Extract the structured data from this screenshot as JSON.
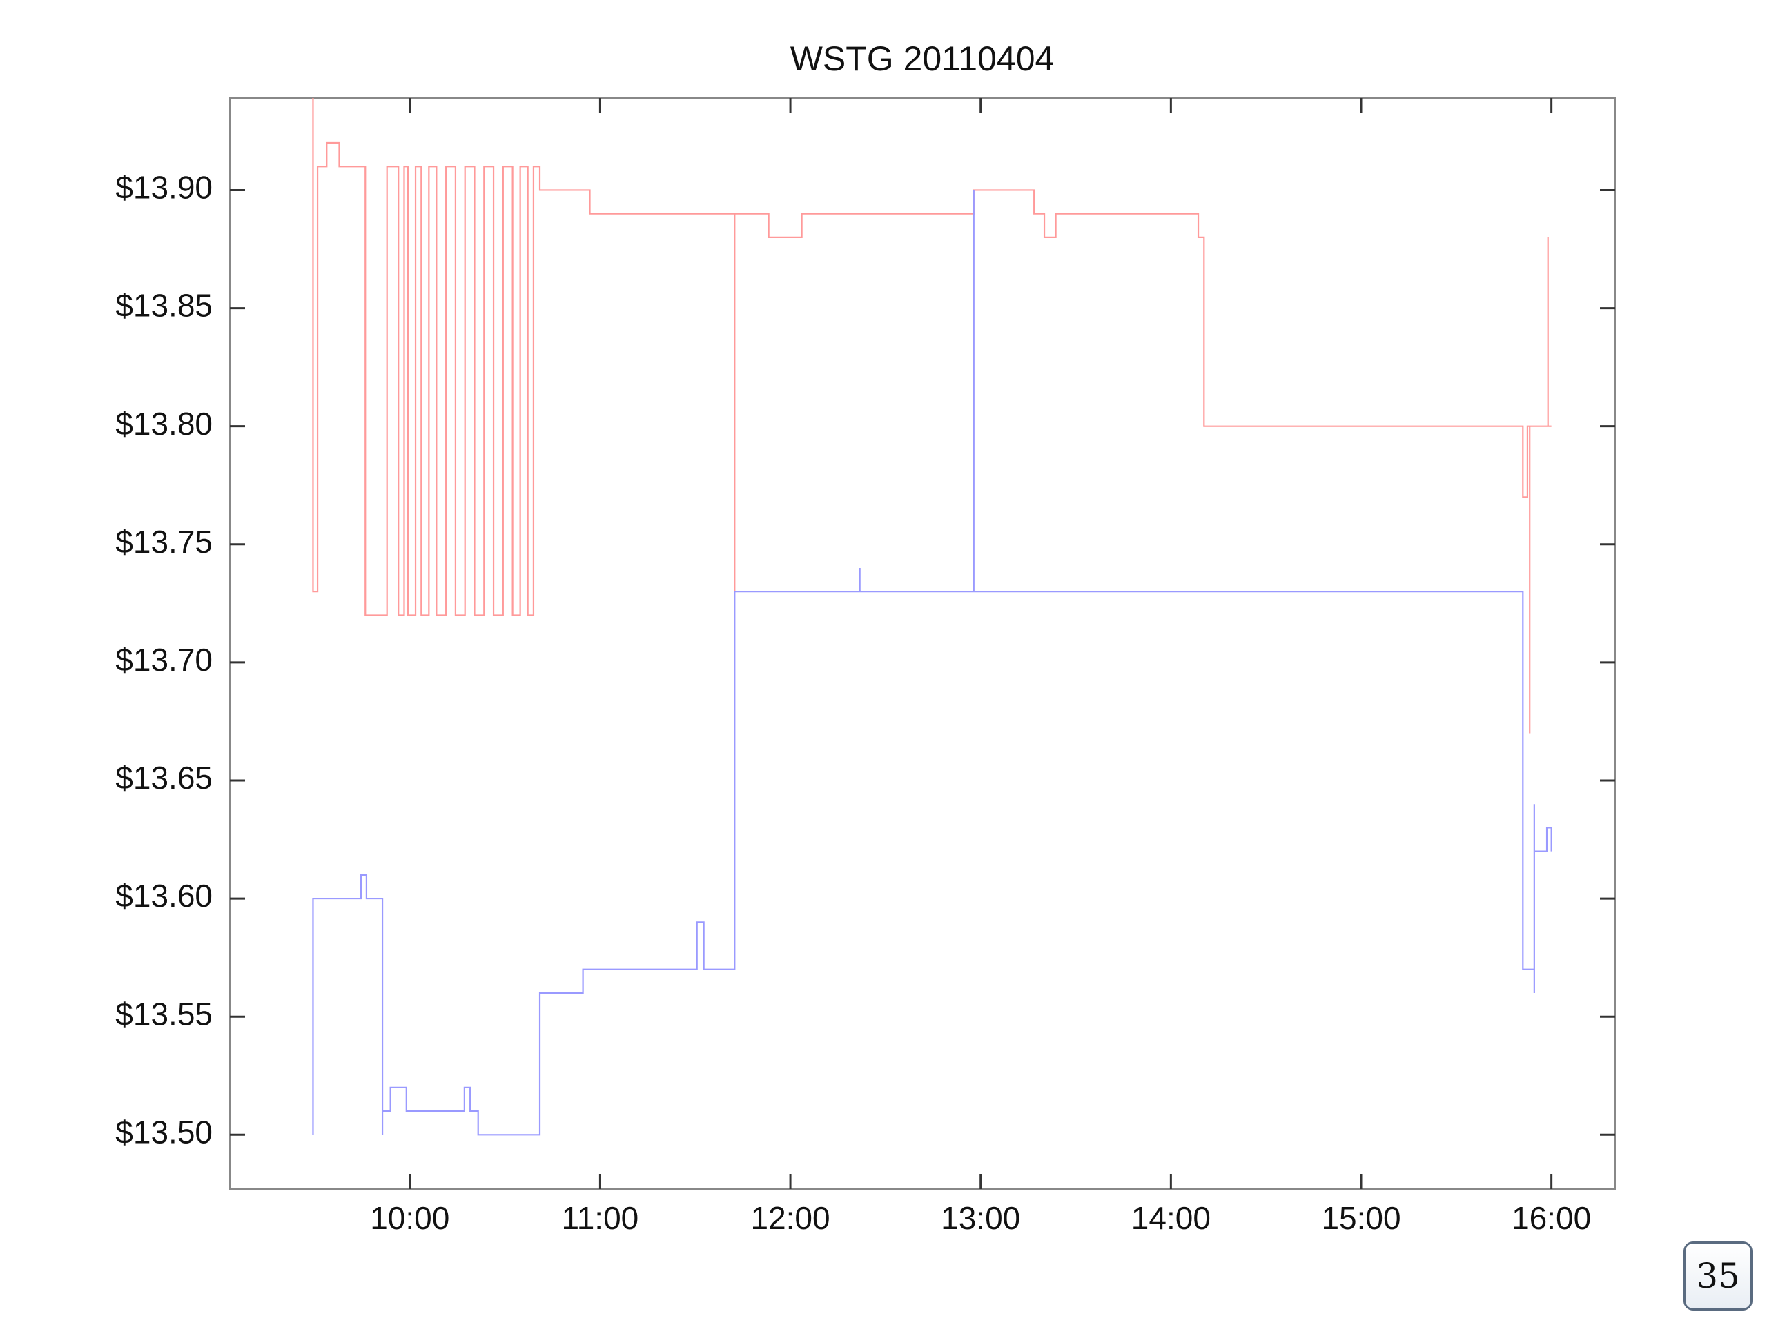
{
  "chart_data": {
    "type": "line",
    "title": "WSTG 20110404",
    "xlim": [
      9.054,
      16.335
    ],
    "ylim": [
      13.477,
      13.939
    ],
    "xticks": [
      {
        "value": 10,
        "label": "10:00"
      },
      {
        "value": 11,
        "label": "11:00"
      },
      {
        "value": 12,
        "label": "12:00"
      },
      {
        "value": 13,
        "label": "13:00"
      },
      {
        "value": 14,
        "label": "14:00"
      },
      {
        "value": 15,
        "label": "15:00"
      },
      {
        "value": 16,
        "label": "16:00"
      }
    ],
    "yticks": [
      {
        "value": 13.5,
        "label": "$13.50"
      },
      {
        "value": 13.55,
        "label": "$13.55"
      },
      {
        "value": 13.6,
        "label": "$13.60"
      },
      {
        "value": 13.65,
        "label": "$13.65"
      },
      {
        "value": 13.7,
        "label": "$13.70"
      },
      {
        "value": 13.75,
        "label": "$13.75"
      },
      {
        "value": 13.8,
        "label": "$13.80"
      },
      {
        "value": 13.85,
        "label": "$13.85"
      },
      {
        "value": 13.9,
        "label": "$13.90"
      }
    ],
    "grid": false,
    "series": [
      {
        "color": "#ff9a9a",
        "x": [
          9.491,
          9.491,
          9.515,
          9.515,
          9.563,
          9.563,
          9.629,
          9.629,
          9.766,
          9.766,
          9.88,
          9.88,
          9.94,
          9.94,
          9.97,
          9.97,
          9.99,
          9.99,
          10.03,
          10.03,
          10.06,
          10.06,
          10.1,
          10.1,
          10.14,
          10.14,
          10.19,
          10.19,
          10.24,
          10.24,
          10.29,
          10.29,
          10.34,
          10.34,
          10.39,
          10.39,
          10.44,
          10.44,
          10.49,
          10.49,
          10.54,
          10.54,
          10.58,
          10.58,
          10.62,
          10.62,
          10.65,
          10.65,
          10.683,
          10.683,
          10.946,
          10.946,
          11.707,
          11.707,
          11.707,
          11.886,
          11.886,
          12.06,
          12.06,
          12.964,
          12.964,
          13.281,
          13.281,
          13.335,
          13.335,
          13.395,
          13.395,
          14.144,
          14.144,
          14.174,
          14.174,
          15.85,
          15.85,
          15.874,
          15.874,
          15.886,
          15.886,
          15.886,
          15.982,
          15.982,
          15.982,
          16.0
        ],
        "values": [
          13.939,
          13.73,
          13.73,
          13.91,
          13.91,
          13.92,
          13.92,
          13.91,
          13.91,
          13.72,
          13.72,
          13.91,
          13.91,
          13.72,
          13.72,
          13.91,
          13.91,
          13.72,
          13.72,
          13.91,
          13.91,
          13.72,
          13.72,
          13.91,
          13.91,
          13.72,
          13.72,
          13.91,
          13.91,
          13.72,
          13.72,
          13.91,
          13.91,
          13.72,
          13.72,
          13.91,
          13.91,
          13.72,
          13.72,
          13.91,
          13.91,
          13.72,
          13.72,
          13.91,
          13.91,
          13.72,
          13.72,
          13.91,
          13.91,
          13.9,
          13.9,
          13.89,
          13.89,
          13.73,
          13.89,
          13.89,
          13.88,
          13.88,
          13.89,
          13.89,
          13.9,
          13.9,
          13.89,
          13.89,
          13.88,
          13.88,
          13.89,
          13.89,
          13.88,
          13.88,
          13.8,
          13.8,
          13.77,
          13.77,
          13.8,
          13.8,
          13.67,
          13.8,
          13.8,
          13.88,
          13.8,
          13.8
        ]
      },
      {
        "color": "#9a9aff",
        "x": [
          9.491,
          9.491,
          9.743,
          9.743,
          9.772,
          9.772,
          9.856,
          9.856,
          9.856,
          9.898,
          9.898,
          9.982,
          9.982,
          10.287,
          10.287,
          10.317,
          10.317,
          10.359,
          10.359,
          10.683,
          10.683,
          10.91,
          10.91,
          11.509,
          11.509,
          11.545,
          11.545,
          11.707,
          11.707,
          12.365,
          12.365,
          12.365,
          12.964,
          12.964,
          12.964,
          15.85,
          15.85,
          15.91,
          15.91,
          15.91,
          15.91,
          15.976,
          15.976,
          16.0,
          16.0
        ],
        "values": [
          13.5,
          13.6,
          13.6,
          13.61,
          13.61,
          13.6,
          13.6,
          13.5,
          13.51,
          13.51,
          13.52,
          13.52,
          13.51,
          13.51,
          13.52,
          13.52,
          13.51,
          13.51,
          13.5,
          13.5,
          13.56,
          13.56,
          13.57,
          13.57,
          13.59,
          13.59,
          13.57,
          13.57,
          13.73,
          13.73,
          13.74,
          13.73,
          13.73,
          13.9,
          13.73,
          13.73,
          13.57,
          13.57,
          13.56,
          13.64,
          13.62,
          13.62,
          13.63,
          13.63,
          13.62
        ]
      }
    ]
  },
  "slide": {
    "page_number": "35"
  }
}
